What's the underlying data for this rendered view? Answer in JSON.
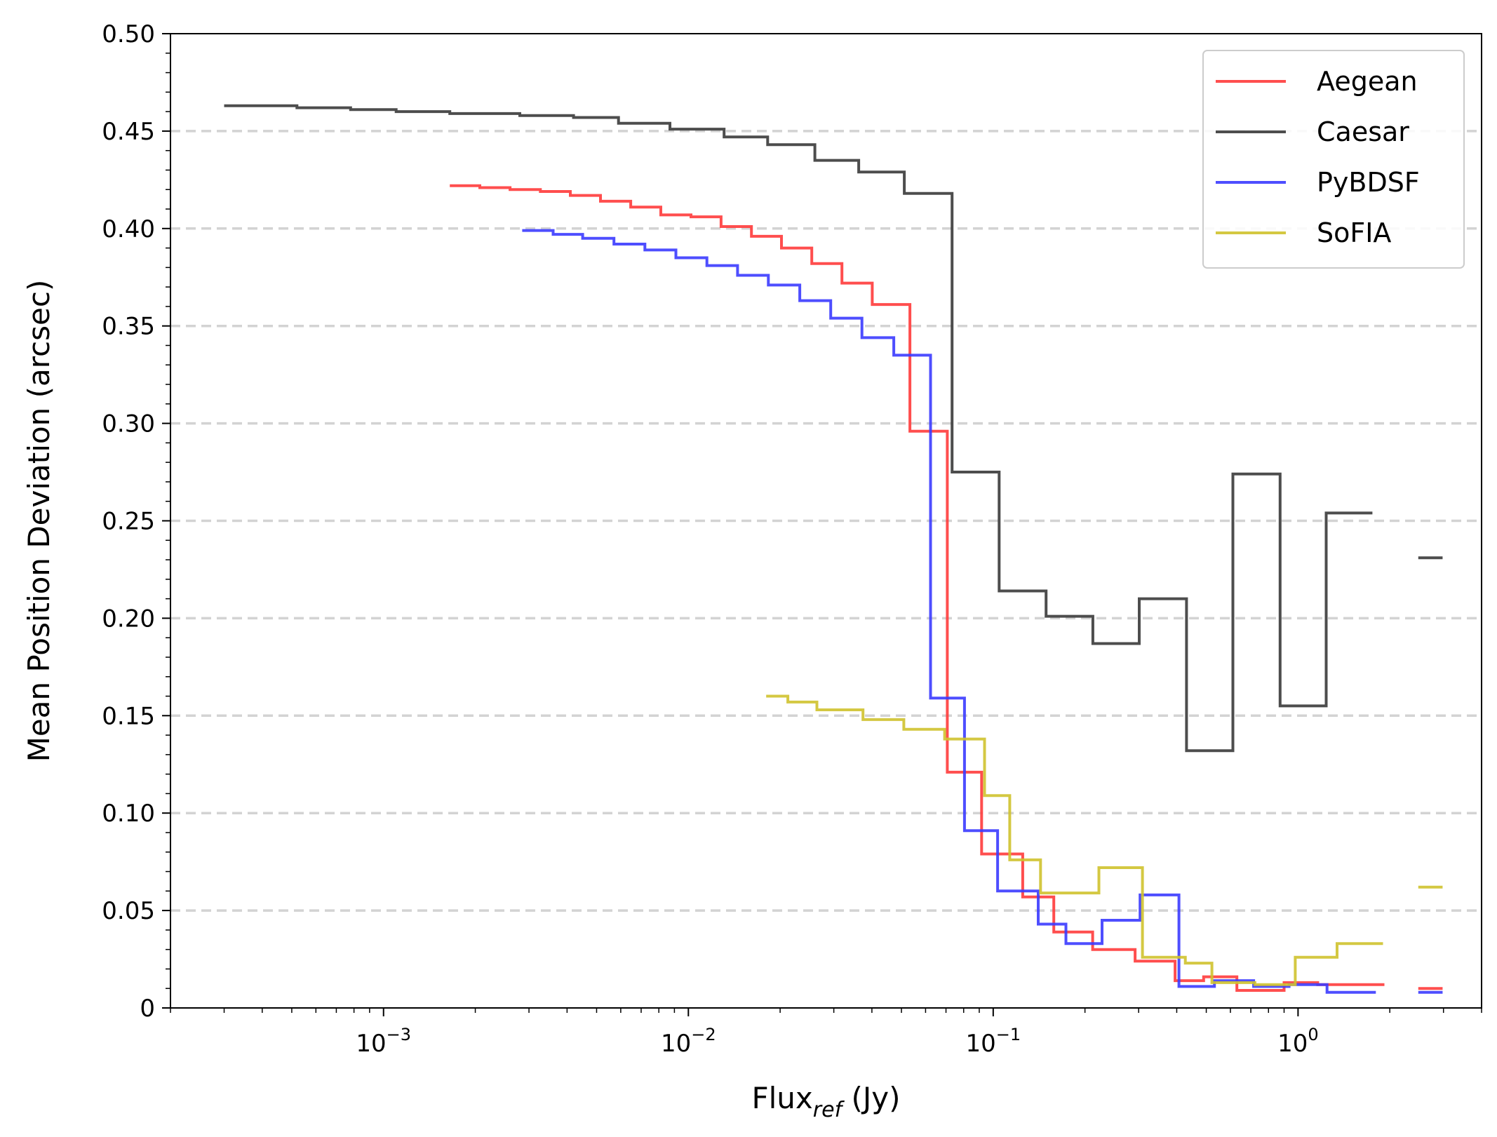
{
  "chart_data": {
    "type": "line",
    "drawstyle": "steps",
    "xscale": "log",
    "xlabel": {
      "base": "Flux",
      "sub": "ref",
      "unit": " (Jy)"
    },
    "ylabel": "Mean Position Deviation (arcsec)",
    "xlim": [
      0.0002,
      4.0
    ],
    "ylim": [
      0,
      0.5
    ],
    "xticks": [
      {
        "value": 0.001,
        "base": "10",
        "exp": "−3"
      },
      {
        "value": 0.01,
        "base": "10",
        "exp": "−2"
      },
      {
        "value": 0.1,
        "base": "10",
        "exp": "−1"
      },
      {
        "value": 1,
        "base": "10",
        "exp": "0"
      }
    ],
    "yticks": [
      {
        "value": 0,
        "label": "0"
      },
      {
        "value": 0.05,
        "label": "0.05"
      },
      {
        "value": 0.1,
        "label": "0.10"
      },
      {
        "value": 0.15,
        "label": "0.15"
      },
      {
        "value": 0.2,
        "label": "0.20"
      },
      {
        "value": 0.25,
        "label": "0.25"
      },
      {
        "value": 0.3,
        "label": "0.30"
      },
      {
        "value": 0.35,
        "label": "0.35"
      },
      {
        "value": 0.4,
        "label": "0.40"
      },
      {
        "value": 0.45,
        "label": "0.45"
      },
      {
        "value": 0.5,
        "label": "0.50"
      }
    ],
    "grid": "horizontal-dashed",
    "legend_position": "top-right",
    "series": [
      {
        "name": "Aegean",
        "color": "#ff3b3b",
        "steps": [
          [
            0.00165,
            0.00207,
            0.422
          ],
          [
            0.00207,
            0.0026,
            0.421
          ],
          [
            0.0026,
            0.00327,
            0.42
          ],
          [
            0.00327,
            0.0041,
            0.419
          ],
          [
            0.0041,
            0.00515,
            0.417
          ],
          [
            0.00515,
            0.00647,
            0.414
          ],
          [
            0.00647,
            0.00812,
            0.411
          ],
          [
            0.00812,
            0.0102,
            0.407
          ],
          [
            0.0102,
            0.0128,
            0.406
          ],
          [
            0.0128,
            0.0161,
            0.401
          ],
          [
            0.0161,
            0.0202,
            0.396
          ],
          [
            0.0202,
            0.0254,
            0.39
          ],
          [
            0.0254,
            0.0319,
            0.382
          ],
          [
            0.0319,
            0.0401,
            0.372
          ],
          [
            0.0401,
            0.0533,
            0.361
          ],
          [
            0.0533,
            0.0707,
            0.296
          ],
          [
            0.0707,
            0.0916,
            0.121
          ],
          [
            0.0916,
            0.125,
            0.079
          ],
          [
            0.125,
            0.158,
            0.057
          ],
          [
            0.158,
            0.212,
            0.039
          ],
          [
            0.212,
            0.292,
            0.03
          ],
          [
            0.292,
            0.395,
            0.024
          ],
          [
            0.395,
            0.49,
            0.014
          ],
          [
            0.49,
            0.63,
            0.016
          ],
          [
            0.63,
            0.9,
            0.009
          ],
          [
            0.9,
            1.16,
            0.013
          ],
          [
            1.16,
            1.5,
            0.012
          ],
          [
            1.5,
            1.92,
            0.012
          ]
        ],
        "extra_segment": [
          2.48,
          2.98,
          0.01
        ]
      },
      {
        "name": "Caesar",
        "color": "#3a3a3a",
        "steps": [
          [
            0.0003,
            0.00052,
            0.463
          ],
          [
            0.00052,
            0.00078,
            0.462
          ],
          [
            0.00078,
            0.0011,
            0.461
          ],
          [
            0.0011,
            0.00165,
            0.46
          ],
          [
            0.00165,
            0.0028,
            0.459
          ],
          [
            0.0028,
            0.0042,
            0.458
          ],
          [
            0.0042,
            0.0059,
            0.457
          ],
          [
            0.0059,
            0.0087,
            0.454
          ],
          [
            0.0087,
            0.0131,
            0.451
          ],
          [
            0.0131,
            0.0182,
            0.447
          ],
          [
            0.0182,
            0.026,
            0.443
          ],
          [
            0.026,
            0.0362,
            0.435
          ],
          [
            0.0362,
            0.0511,
            0.429
          ],
          [
            0.0511,
            0.0733,
            0.418
          ],
          [
            0.0733,
            0.1046,
            0.275
          ],
          [
            0.1046,
            0.1491,
            0.214
          ],
          [
            0.1491,
            0.2123,
            0.201
          ],
          [
            0.2123,
            0.3014,
            0.187
          ],
          [
            0.3014,
            0.4306,
            0.21
          ],
          [
            0.4306,
            0.6113,
            0.132
          ],
          [
            0.6113,
            0.8731,
            0.274
          ],
          [
            0.8731,
            1.2371,
            0.155
          ],
          [
            1.2371,
            1.7541,
            0.254
          ]
        ],
        "extra_segment": [
          2.48,
          2.98,
          0.231
        ]
      },
      {
        "name": "PyBDSF",
        "color": "#3b3bff",
        "steps": [
          [
            0.00285,
            0.0036,
            0.399
          ],
          [
            0.0036,
            0.0045,
            0.397
          ],
          [
            0.0045,
            0.0057,
            0.395
          ],
          [
            0.0057,
            0.0072,
            0.392
          ],
          [
            0.0072,
            0.0091,
            0.389
          ],
          [
            0.0091,
            0.0115,
            0.385
          ],
          [
            0.0115,
            0.0145,
            0.381
          ],
          [
            0.0145,
            0.0183,
            0.376
          ],
          [
            0.0183,
            0.0232,
            0.371
          ],
          [
            0.0232,
            0.0293,
            0.363
          ],
          [
            0.0293,
            0.0371,
            0.354
          ],
          [
            0.0371,
            0.0472,
            0.344
          ],
          [
            0.0472,
            0.0623,
            0.335
          ],
          [
            0.0623,
            0.0805,
            0.159
          ],
          [
            0.0805,
            0.1034,
            0.091
          ],
          [
            0.1034,
            0.1405,
            0.06
          ],
          [
            0.1405,
            0.1732,
            0.043
          ],
          [
            0.1732,
            0.2276,
            0.033
          ],
          [
            0.2276,
            0.3032,
            0.045
          ],
          [
            0.3032,
            0.4068,
            0.058
          ],
          [
            0.4068,
            0.5318,
            0.011
          ],
          [
            0.5318,
            0.715,
            0.014
          ],
          [
            0.715,
            0.9345,
            0.011
          ],
          [
            0.9345,
            1.2447,
            0.012
          ],
          [
            1.2447,
            1.8,
            0.008
          ]
        ],
        "extra_segment": [
          2.48,
          2.98,
          0.008
        ]
      },
      {
        "name": "SoFIA",
        "color": "#cfc22d",
        "steps": [
          [
            0.018,
            0.0212,
            0.16
          ],
          [
            0.0212,
            0.0264,
            0.157
          ],
          [
            0.0264,
            0.0374,
            0.153
          ],
          [
            0.0374,
            0.0509,
            0.148
          ],
          [
            0.0509,
            0.0693,
            0.143
          ],
          [
            0.0693,
            0.0937,
            0.138
          ],
          [
            0.0937,
            0.1133,
            0.109
          ],
          [
            0.1133,
            0.143,
            0.076
          ],
          [
            0.143,
            0.1719,
            0.059
          ],
          [
            0.1719,
            0.2222,
            0.059
          ],
          [
            0.2222,
            0.3087,
            0.072
          ],
          [
            0.3087,
            0.4268,
            0.026
          ],
          [
            0.4268,
            0.5218,
            0.023
          ],
          [
            0.5218,
            0.7219,
            0.013
          ],
          [
            0.7219,
            0.9793,
            0.012
          ],
          [
            0.9793,
            1.343,
            0.026
          ],
          [
            1.343,
            1.9,
            0.033
          ]
        ],
        "extra_segment": [
          2.48,
          2.98,
          0.062
        ]
      }
    ]
  }
}
